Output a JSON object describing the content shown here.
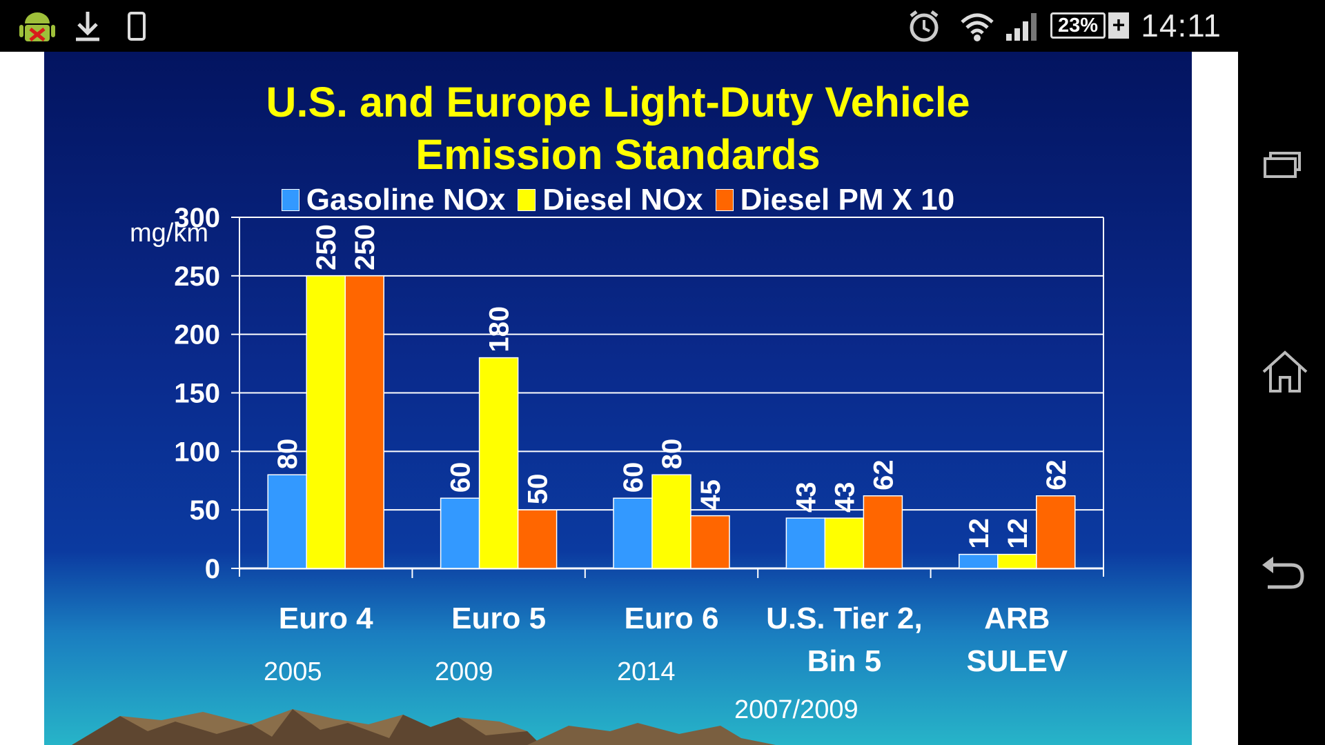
{
  "status_bar": {
    "left_icons": [
      "android-debug-icon",
      "download-icon",
      "phone-icon"
    ],
    "right_icons": [
      "alarm-icon",
      "wifi-icon",
      "signal-icon"
    ],
    "battery": "23%",
    "battery_plus": "+",
    "time": "14:11"
  },
  "nav_bar": {
    "icons": [
      "recent-apps-icon",
      "home-icon",
      "back-icon"
    ]
  },
  "slide": {
    "title_line1": "U.S. and Europe Light-Duty Vehicle",
    "title_line2": "Emission Standards",
    "unit_label": "mg/km",
    "years": [
      "2005",
      "2009",
      "2014",
      "2007/2009"
    ],
    "colors": {
      "title": "#ffff00",
      "gasoline": "#3399ff",
      "diesel_nox": "#ffff00",
      "diesel_pm": "#ff6600"
    }
  },
  "chart_data": {
    "type": "bar",
    "categories": [
      "Euro 4",
      "Euro 5",
      "Euro 6",
      "U.S. Tier 2,\nBin 5",
      "ARB\nSULEV"
    ],
    "series": [
      {
        "name": "Gasoline NOx",
        "values": [
          80,
          60,
          60,
          43,
          12
        ],
        "color": "#3399ff"
      },
      {
        "name": "Diesel NOx",
        "values": [
          250,
          180,
          80,
          43,
          12
        ],
        "color": "#ffff00"
      },
      {
        "name": "Diesel PM X 10",
        "values": [
          250,
          50,
          45,
          62,
          62
        ],
        "color": "#ff6600"
      }
    ],
    "ylabel": "mg/km",
    "ylim": [
      0,
      300
    ],
    "yticks": [
      0,
      50,
      100,
      150,
      200,
      250,
      300
    ],
    "grid": true,
    "legend": "top",
    "data_labels": "vertical-above-bars"
  }
}
